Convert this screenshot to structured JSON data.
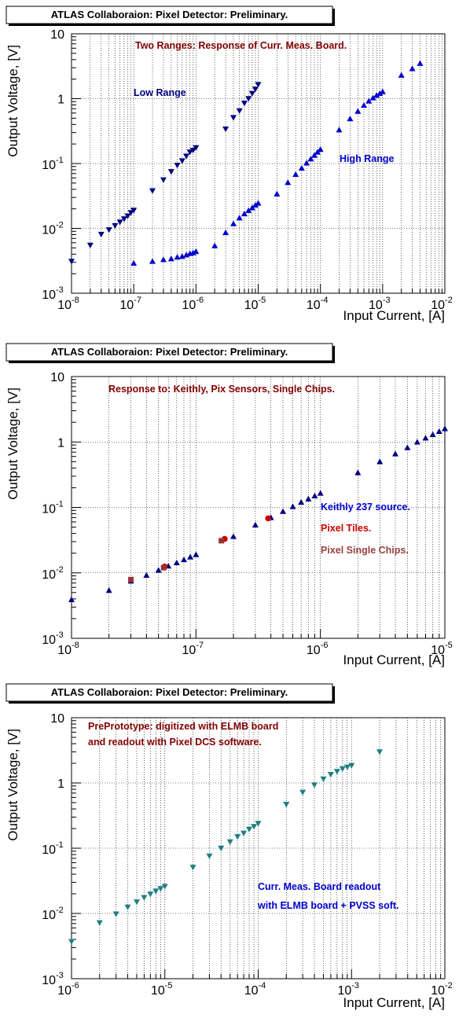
{
  "chart_data": [
    {
      "type": "scatter",
      "header": "ATLAS Collaboraion: Pixel Detector: Preliminary.",
      "ylabel": "Output Voltage, [V]",
      "xlabel": "Input Current, [A]",
      "xscale": "log",
      "yscale": "log",
      "xlim": [
        1e-08,
        0.01
      ],
      "ylim": [
        0.001,
        10
      ],
      "grid": true,
      "annotations": [
        {
          "text": "Two Ranges: Response of Curr. Meas. Board.",
          "color": "#800000"
        },
        {
          "text": "Low Range",
          "color": "#000080"
        },
        {
          "text": "High Range",
          "color": "#0000cc"
        }
      ],
      "series": [
        {
          "marker": "triangle-down",
          "color": "#000080",
          "x": [
            1e-08,
            2e-08,
            3e-08,
            4e-08,
            5e-08,
            6e-08,
            7e-08,
            8e-08,
            9e-08,
            1e-07,
            2e-07,
            3e-07,
            4e-07,
            5e-07,
            6e-07,
            7e-07,
            8e-07,
            9e-07,
            1e-06,
            3e-06,
            4e-06,
            5e-06,
            6e-06,
            7e-06,
            8e-06,
            9e-06,
            1e-05
          ],
          "y": [
            0.0031,
            0.0055,
            0.0081,
            0.0095,
            0.011,
            0.0125,
            0.014,
            0.0155,
            0.0175,
            0.019,
            0.038,
            0.056,
            0.075,
            0.094,
            0.11,
            0.13,
            0.15,
            0.16,
            0.175,
            0.34,
            0.51,
            0.65,
            0.85,
            1.0,
            1.2,
            1.4,
            1.65
          ]
        },
        {
          "marker": "triangle-up",
          "color": "#0000cc",
          "x": [
            1e-07,
            2e-07,
            3e-07,
            4e-07,
            5e-07,
            6e-07,
            7e-07,
            8e-07,
            9e-07,
            1e-06,
            2e-06,
            3e-06,
            4e-06,
            5e-06,
            6e-06,
            7e-06,
            8e-06,
            9e-06,
            1e-05,
            2e-05,
            3e-05,
            4e-05,
            5e-05,
            6e-05,
            7e-05,
            8e-05,
            9e-05,
            0.0001,
            0.0002,
            0.0003,
            0.0004,
            0.0005,
            0.0006,
            0.0007,
            0.0008,
            0.0009,
            0.001,
            0.002,
            0.003,
            0.004
          ],
          "y": [
            0.0029,
            0.0031,
            0.0033,
            0.0034,
            0.0036,
            0.0037,
            0.0039,
            0.0041,
            0.0042,
            0.0044,
            0.0054,
            0.0086,
            0.0118,
            0.0145,
            0.0168,
            0.0189,
            0.0208,
            0.0228,
            0.0245,
            0.034,
            0.051,
            0.068,
            0.085,
            0.102,
            0.118,
            0.134,
            0.15,
            0.165,
            0.33,
            0.49,
            0.64,
            0.79,
            0.92,
            1.03,
            1.13,
            1.2,
            1.28,
            2.3,
            2.9,
            3.5
          ]
        }
      ]
    },
    {
      "type": "scatter",
      "header": "ATLAS Collaboraion: Pixel Detector: Preliminary.",
      "ylabel": "Output Voltage, [V]",
      "xlabel": "Input Current, [A]",
      "xscale": "log",
      "yscale": "log",
      "xlim": [
        1e-08,
        1e-05
      ],
      "ylim": [
        0.001,
        10
      ],
      "grid": true,
      "annotations": [
        {
          "text": "Response to: Keithly, Pix Sensors, Single Chips.",
          "color": "#800000"
        },
        {
          "text": "Keithly 237 source.",
          "color": "#0000cc"
        },
        {
          "text": "Pixel Tiles.",
          "color": "#cc0000"
        },
        {
          "text": "Pixel Single Chips.",
          "color": "#994040"
        }
      ],
      "series": [
        {
          "name": "Keithly 237 source.",
          "marker": "triangle-up",
          "color": "#000080",
          "x": [
            1e-08,
            2e-08,
            3e-08,
            4e-08,
            5e-08,
            6e-08,
            7e-08,
            8e-08,
            9e-08,
            1e-07,
            2e-07,
            3e-07,
            4e-07,
            5e-07,
            6e-07,
            7e-07,
            8e-07,
            9e-07,
            1e-06,
            2e-06,
            3e-06,
            4e-06,
            5e-06,
            6e-06,
            7e-06,
            8e-06,
            9e-06,
            1e-05
          ],
          "y": [
            0.0039,
            0.0054,
            0.0075,
            0.0092,
            0.011,
            0.0127,
            0.0143,
            0.0159,
            0.0175,
            0.019,
            0.036,
            0.054,
            0.07,
            0.087,
            0.103,
            0.12,
            0.135,
            0.15,
            0.165,
            0.34,
            0.5,
            0.66,
            0.82,
            1.0,
            1.15,
            1.3,
            1.45,
            1.6
          ]
        },
        {
          "name": "Pixel Tiles.",
          "marker": "circle",
          "color": "#cc0000",
          "x": [
            5.6e-08,
            1.7e-07,
            3.8e-07
          ],
          "y": [
            0.0125,
            0.033,
            0.068
          ]
        },
        {
          "name": "Pixel Single Chips.",
          "marker": "square",
          "color": "#993333",
          "x": [
            3e-08,
            5.5e-08,
            1.6e-07
          ],
          "y": [
            0.0079,
            0.012,
            0.031
          ]
        }
      ]
    },
    {
      "type": "scatter",
      "header": "ATLAS Collaboraion: Pixel Detector: Preliminary.",
      "ylabel": "Output Voltage, [V]",
      "xlabel": "Input Current, [A]",
      "xscale": "log",
      "yscale": "log",
      "xlim": [
        1e-06,
        0.01
      ],
      "ylim": [
        0.001,
        10
      ],
      "grid": true,
      "annotations": [
        {
          "text": "PrePrototype: digitized with ELMB board",
          "color": "#800000"
        },
        {
          "text": "and readout with Pixel DCS software.",
          "color": "#800000"
        },
        {
          "text": "Curr. Meas. Board readout",
          "color": "#0000cc"
        },
        {
          "text": "with ELMB board + PVSS soft.",
          "color": "#0000cc"
        }
      ],
      "series": [
        {
          "marker": "triangle-down",
          "color": "#1f7f7f",
          "x": [
            1e-06,
            2e-06,
            3e-06,
            4e-06,
            5e-06,
            6e-06,
            7e-06,
            8e-06,
            9e-06,
            1e-05,
            2e-05,
            3e-05,
            4e-05,
            5e-05,
            6e-05,
            7e-05,
            8e-05,
            9e-05,
            0.0001,
            0.0002,
            0.0003,
            0.0004,
            0.0005,
            0.0006,
            0.0007,
            0.0008,
            0.0009,
            0.001,
            0.002
          ],
          "y": [
            0.0037,
            0.0072,
            0.0098,
            0.0125,
            0.015,
            0.0175,
            0.0198,
            0.022,
            0.024,
            0.026,
            0.051,
            0.076,
            0.1,
            0.125,
            0.15,
            0.17,
            0.195,
            0.215,
            0.24,
            0.47,
            0.72,
            0.93,
            1.15,
            1.35,
            1.5,
            1.65,
            1.75,
            1.85,
            3.0
          ]
        }
      ]
    }
  ]
}
